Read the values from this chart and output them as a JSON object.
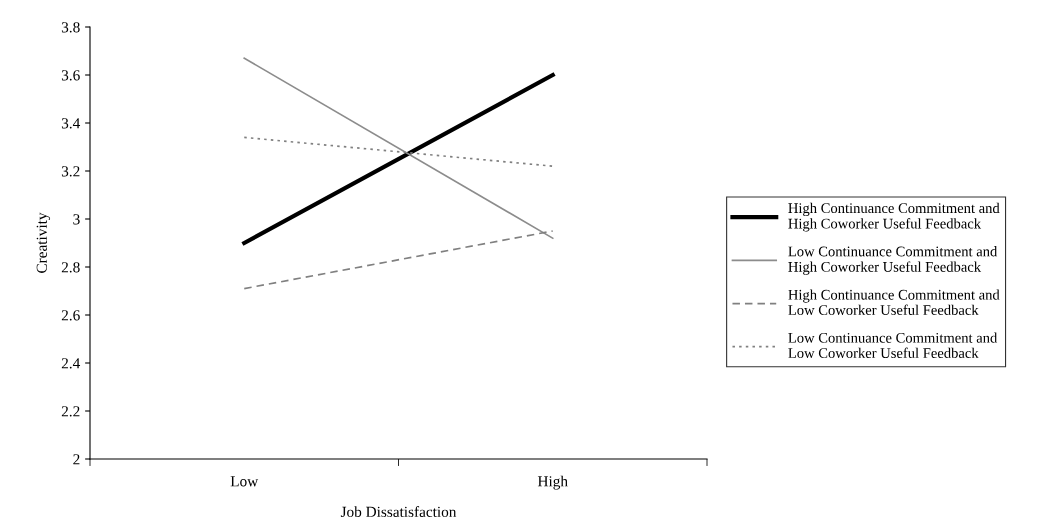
{
  "chart_data": {
    "type": "line",
    "xlabel": "Job Dissatisfaction",
    "ylabel": "Creativity",
    "categories": [
      "Low",
      "High"
    ],
    "ylim": [
      2,
      3.8
    ],
    "yticks": [
      2,
      2.2,
      2.4,
      2.6,
      2.8,
      3,
      3.2,
      3.4,
      3.6,
      3.8
    ],
    "grid": false,
    "legend": "right",
    "marker": "none",
    "series": [
      {
        "name": "High Continuance Commitment and\nHigh Coworker Useful Feedback",
        "color": "#000000",
        "values": [
          2.9,
          3.6
        ],
        "line_style": "solid"
      },
      {
        "name": "Low Continuance Commitment and\nHigh Coworker Useful Feedback",
        "color": "#8c8c8c",
        "values": [
          3.67,
          2.92
        ],
        "line_style": "solid"
      },
      {
        "name": "High Continuance Commitment and\nLow Coworker Useful Feedback",
        "color": "#808080",
        "values": [
          2.71,
          2.95
        ],
        "line_style": "dashed"
      },
      {
        "name": "Low Continuance Commitment and\nLow Coworker Useful Feedback",
        "color": "#808080",
        "values": [
          3.34,
          3.22
        ],
        "line_style": "dotted"
      }
    ]
  }
}
